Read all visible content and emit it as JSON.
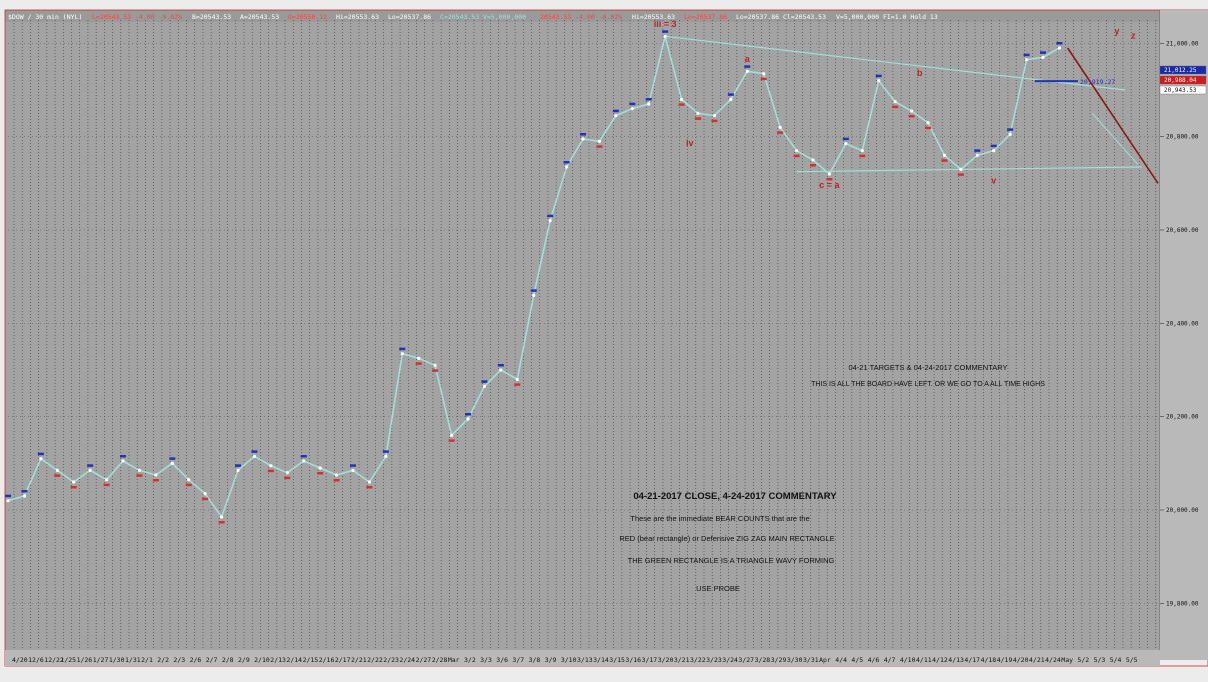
{
  "header": {
    "symbol": "$DOW",
    "segments": [
      {
        "text": "$DOW / 30 min (NYL)",
        "color": "#ffffff"
      },
      {
        "text": "L=20543.53 -4.00 -0.02%",
        "color": "#ff4040"
      },
      {
        "text": "B=20543.53",
        "color": "#ffffff"
      },
      {
        "text": "A=20543.53",
        "color": "#ffffff"
      },
      {
        "text": "O=20550.12",
        "color": "#ff4040"
      },
      {
        "text": "Hi=20553.63",
        "color": "#ffffff"
      },
      {
        "text": "Lo=20537.86",
        "color": "#ffffff"
      },
      {
        "text": "C=20543.53  V=5,000,000",
        "color": "#9fe0d8"
      },
      {
        "text": "20543.53 -4.00 -0.02%",
        "color": "#ff4040"
      },
      {
        "text": "Hi=20553.63",
        "color": "#ffffff"
      },
      {
        "text": "Lo=20537.86",
        "color": "#ff4040"
      },
      {
        "text": "Lo=20537.86 Cl=20543.53",
        "color": "#ffffff"
      },
      {
        "text": "V=5,000,000  FI=1.0 Hold 13",
        "color": "#ffffff"
      }
    ]
  },
  "chart_data": {
    "type": "line",
    "title": "",
    "xlabel": "",
    "ylabel": "",
    "ylim": [
      19700,
      21050
    ],
    "y_ticks": [
      {
        "label": "21,000.00",
        "value": 21000
      },
      {
        "label": "20,800.00",
        "value": 20800
      },
      {
        "label": "20,600.00",
        "value": 20600
      },
      {
        "label": "20,400.00",
        "value": 20400
      },
      {
        "label": "20,200.00",
        "value": 20200
      },
      {
        "label": "20,000.00",
        "value": 20000
      },
      {
        "label": "19,800.00",
        "value": 19800
      }
    ],
    "x_tick_labels": [
      "4/20",
      "12/6",
      "12/22",
      "1/25",
      "1/26",
      "1/27",
      "1/30",
      "1/31",
      "2/1",
      "2/2",
      "2/3",
      "2/6",
      "2/7",
      "2/8",
      "2/9",
      "2/10",
      "2/13",
      "2/14",
      "2/15",
      "2/16",
      "2/17",
      "2/21",
      "2/22",
      "2/23",
      "2/24",
      "2/27",
      "2/28",
      "Mar",
      "3/2",
      "3/3",
      "3/6",
      "3/7",
      "3/8",
      "3/9",
      "3/10",
      "3/13",
      "3/14",
      "3/15",
      "3/16",
      "3/17",
      "3/20",
      "3/21",
      "3/22",
      "3/23",
      "3/24",
      "3/27",
      "3/28",
      "3/29",
      "3/30",
      "3/31",
      "Apr",
      "4/4",
      "4/5",
      "4/6",
      "4/7",
      "4/10",
      "4/11",
      "4/12",
      "4/13",
      "4/17",
      "4/18",
      "4/19",
      "4/20",
      "4/21",
      "4/24",
      "May",
      "5/2",
      "5/3",
      "5/4",
      "5/5"
    ],
    "series": [
      {
        "values": [
          20020,
          20030,
          20110,
          20085,
          20060,
          20085,
          20065,
          20105,
          20085,
          20075,
          20100,
          20065,
          20035,
          19985,
          20085,
          20115,
          20095,
          20080,
          20105,
          20090,
          20075,
          20085,
          20060,
          20115,
          20335,
          20325,
          20310,
          20160,
          20195,
          20265,
          20300,
          20280,
          20460,
          20620,
          20735,
          20795,
          20790,
          20845,
          20860,
          20870,
          21015,
          20880,
          20850,
          20845,
          20880,
          20940,
          20935,
          20820,
          20770,
          20750,
          20720,
          20785,
          20770,
          20920,
          20875,
          20855,
          20830,
          20760,
          20730,
          20760,
          20770,
          20805,
          20965,
          20970,
          20990
        ],
        "color": "#9fe0d8"
      }
    ],
    "channel": {
      "color": "#9fe0d8"
    },
    "resistance_label": "20,919.27",
    "resistance_value": 20919,
    "projection_points": [
      {
        "x_index": 64.5,
        "y": 20990
      },
      {
        "x_index": 70,
        "y": 20700
      }
    ],
    "wave_labels": [
      {
        "text": "iii = 3",
        "x_index": 40,
        "y": 21035
      },
      {
        "text": "iv",
        "x_index": 41.5,
        "y": 20780
      },
      {
        "text": "a",
        "x_index": 45,
        "y": 20960
      },
      {
        "text": "c = a",
        "x_index": 50,
        "y": 20690
      },
      {
        "text": "b",
        "x_index": 55.5,
        "y": 20930
      },
      {
        "text": "v",
        "x_index": 60,
        "y": 20700
      },
      {
        "text": "y",
        "x_index": 67.5,
        "y": 21020
      },
      {
        "text": "z",
        "x_index": 68.5,
        "y": 21010
      }
    ]
  },
  "notes": {
    "upper_line1": "04-21 TARGETS & 04-24-2017 COMMENTARY",
    "upper_line2": "THIS IS ALL THE BOARD HAVE LEFT. OR WE GO TO A ALL TIME HIGHS",
    "title": "04-21-2017 CLOSE, 4-24-2017 COMMENTARY",
    "line1": "These are the immediate BEAR COUNTS that are the",
    "line2": "RED (bear rectangle) or Defensive ZIG ZAG MAIN RECTANGLE",
    "line3": "THE GREEN RECTANGLE IS A TRIANGLE WAVY FORMING",
    "line4": "USE PROBE"
  },
  "price_boxes": [
    {
      "label": "21,012.25",
      "color": "#1a2aa8"
    },
    {
      "label": "20,988.04",
      "color": "#d21a1a"
    },
    {
      "label": "20,943.53",
      "color": "#ffffff"
    }
  ],
  "colors": {
    "plot_bg": "#a3a3a3",
    "grid": "#202020",
    "up_tick": "#1f34b8",
    "down_tick": "#d43030",
    "resistance": "#1f34b8",
    "projection": "#8a1818",
    "header_bg": "#9a9a9a",
    "axis_bg": "#b9b9b9",
    "border": "#c03030"
  }
}
